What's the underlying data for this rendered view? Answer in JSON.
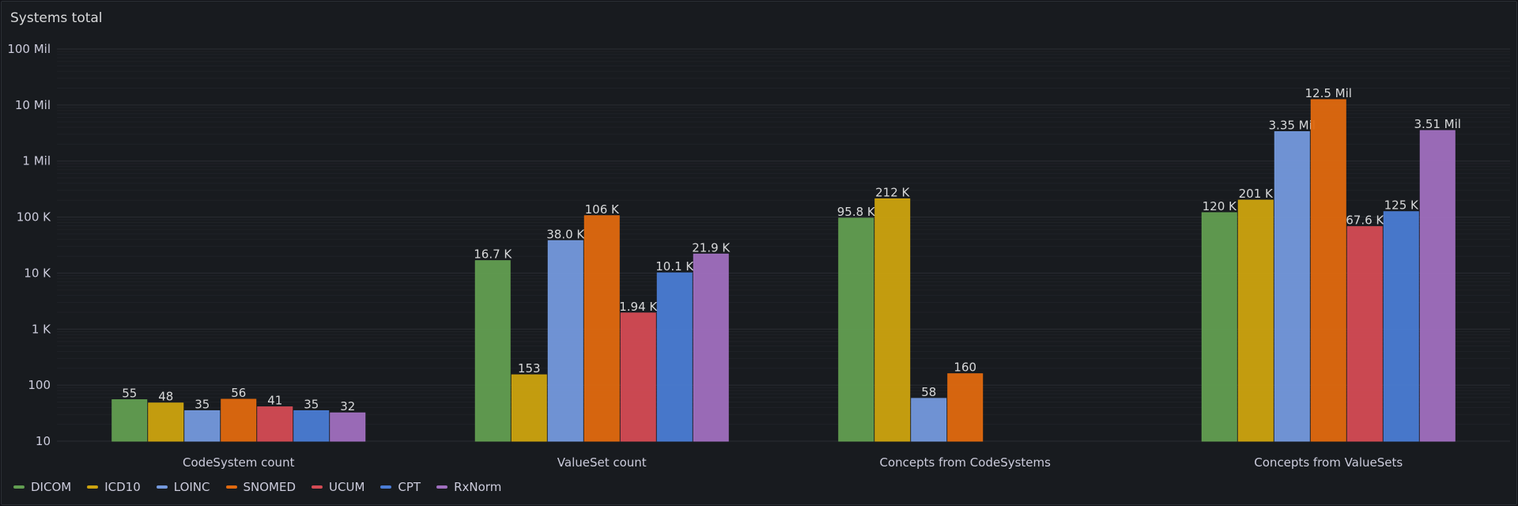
{
  "panel": {
    "title": "Systems total"
  },
  "chart_data": {
    "type": "bar",
    "title": "Systems total",
    "scale": "log10",
    "ylim": [
      10,
      100000000
    ],
    "yticks": [
      {
        "value": 100000000,
        "label": "100 Mil"
      },
      {
        "value": 10000000,
        "label": "10 Mil"
      },
      {
        "value": 1000000,
        "label": "1 Mil"
      },
      {
        "value": 100000,
        "label": "100 K"
      },
      {
        "value": 10000,
        "label": "10 K"
      },
      {
        "value": 1000,
        "label": "1 K"
      },
      {
        "value": 100,
        "label": "100"
      },
      {
        "value": 10,
        "label": "10"
      }
    ],
    "categories": [
      "CodeSystem count",
      "ValueSet count",
      "Concepts from CodeSystems",
      "Concepts from ValueSets"
    ],
    "legend_position": "bottom-left",
    "series": [
      {
        "name": "DICOM",
        "color": "#629e51",
        "values": [
          55,
          16700,
          95800,
          120000
        ],
        "labels": [
          "55",
          "16.7 K",
          "95.8 K",
          "120 K"
        ]
      },
      {
        "name": "ICD10",
        "color": "#cca30f",
        "values": [
          48,
          153,
          212000,
          201000
        ],
        "labels": [
          "48",
          "153",
          "212 K",
          "201 K"
        ]
      },
      {
        "name": "LOINC",
        "color": "#7499dd",
        "values": [
          35,
          38000,
          58,
          3350000
        ],
        "labels": [
          "35",
          "38.0 K",
          "58",
          "3.35 Mil"
        ]
      },
      {
        "name": "SNOMED",
        "color": "#e0690f",
        "values": [
          56,
          106000,
          160,
          12500000
        ],
        "labels": [
          "56",
          "106 K",
          "160",
          "12.5 Mil"
        ]
      },
      {
        "name": "UCUM",
        "color": "#d44b54",
        "values": [
          41,
          1940,
          null,
          67600
        ],
        "labels": [
          "41",
          "1.94 K",
          "",
          "67.6 K"
        ]
      },
      {
        "name": "CPT",
        "color": "#4a7cd4",
        "values": [
          35,
          10100,
          null,
          125000
        ],
        "labels": [
          "35",
          "10.1 K",
          "",
          "125 K"
        ]
      },
      {
        "name": "RxNorm",
        "color": "#a06fbf",
        "values": [
          32,
          21900,
          null,
          3510000
        ],
        "labels": [
          "32",
          "21.9 K",
          "",
          "3.51 Mil"
        ]
      }
    ]
  }
}
